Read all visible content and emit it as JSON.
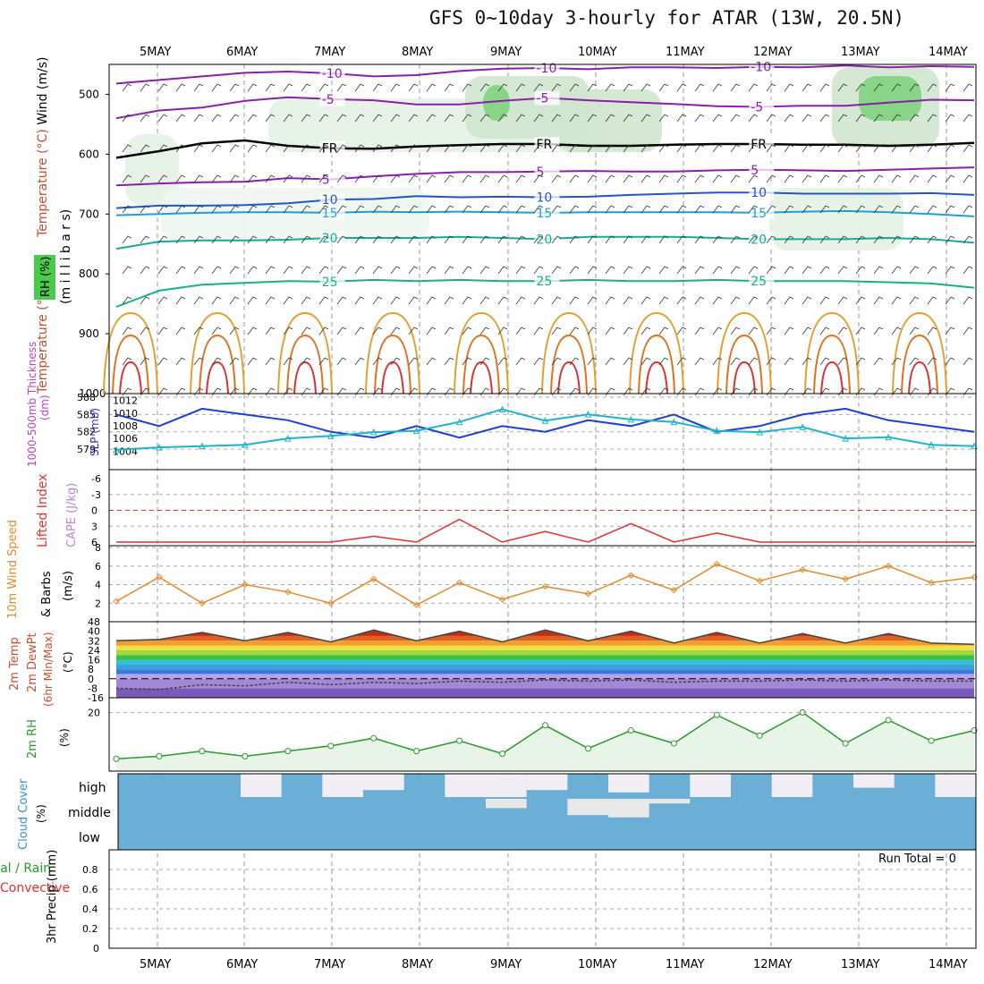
{
  "title": "GFS 0~10day 3-hourly for ATAR (13W, 20.5N)",
  "dates": [
    "5MAY",
    "6MAY",
    "7MAY",
    "8MAY",
    "9MAY",
    "10MAY",
    "11MAY",
    "12MAY",
    "13MAY",
    "14MAY"
  ],
  "chart_data": [
    {
      "panel": "upper-air",
      "type": "contour",
      "ylabel": "(m i l l i b a r s)",
      "legend_labels": [
        "Wind (m/s)",
        "Temperature (°C)",
        "RH (%)"
      ],
      "ylim": [
        1000,
        450
      ],
      "y_ticks": [
        500,
        600,
        700,
        800,
        900,
        1000
      ],
      "freezing_level_label": "FR",
      "isotherms": [
        {
          "temp": -10,
          "label": "-10",
          "color": "#8b1fa9",
          "values": [
            482,
            476,
            470,
            464,
            462,
            465,
            470,
            468,
            461,
            457,
            456,
            458,
            455,
            455,
            456,
            454,
            455,
            452,
            455,
            453,
            454
          ]
        },
        {
          "temp": -5,
          "label": "-5",
          "color": "#8b1fa9",
          "values": [
            540,
            527,
            522,
            511,
            505,
            508,
            510,
            517,
            517,
            511,
            506,
            510,
            513,
            516,
            520,
            521,
            519,
            519,
            514,
            509,
            510
          ]
        },
        {
          "temp": 0,
          "label": "FR",
          "color": "#000000",
          "values": [
            606,
            595,
            582,
            577,
            586,
            590,
            591,
            587,
            585,
            583,
            583,
            586,
            586,
            584,
            583,
            583,
            584,
            584,
            586,
            584,
            581
          ]
        },
        {
          "temp": 5,
          "label": "5",
          "color": "#8b1fa9",
          "values": [
            652,
            649,
            647,
            646,
            640,
            642,
            637,
            633,
            630,
            630,
            629,
            628,
            629,
            629,
            627,
            626,
            627,
            628,
            626,
            624,
            622
          ]
        },
        {
          "temp": 10,
          "label": "10",
          "color": "#2255cc",
          "values": [
            690,
            686,
            686,
            685,
            682,
            676,
            675,
            670,
            672,
            671,
            672,
            671,
            668,
            666,
            664,
            664,
            666,
            666,
            666,
            665,
            668
          ]
        },
        {
          "temp": 15,
          "label": "15",
          "color": "#1f9fd6",
          "values": [
            702,
            700,
            698,
            697,
            697,
            698,
            696,
            697,
            696,
            697,
            698,
            697,
            697,
            697,
            697,
            698,
            696,
            695,
            697,
            700,
            704
          ]
        },
        {
          "temp": 20,
          "label": "20",
          "color": "#1aaa99",
          "values": [
            758,
            746,
            744,
            744,
            743,
            740,
            740,
            740,
            738,
            740,
            742,
            738,
            738,
            738,
            740,
            742,
            742,
            742,
            740,
            742,
            748
          ]
        },
        {
          "temp": 25,
          "label": "25",
          "color": "#19b088",
          "values": [
            855,
            828,
            818,
            815,
            812,
            813,
            810,
            812,
            810,
            812,
            812,
            810,
            812,
            812,
            810,
            812,
            812,
            812,
            814,
            816,
            823
          ]
        }
      ]
    },
    {
      "panel": "thickness-slp",
      "type": "line",
      "series": [
        {
          "name": "1000-500mb Thickness (dm)",
          "color": "#1f3fcf",
          "values": [
            585,
            583,
            586,
            585,
            584,
            582,
            581,
            583,
            581,
            583,
            582,
            584,
            583,
            585,
            582,
            583,
            585,
            586,
            584,
            583,
            582
          ]
        },
        {
          "name": "SLP (mb)",
          "color": "#1fb3c9",
          "values": [
            1004.2,
            1004.6,
            1004.8,
            1005.0,
            1006.0,
            1006.4,
            1007.0,
            1007.2,
            1008.6,
            1010.6,
            1008.8,
            1009.8,
            1009.0,
            1008.6,
            1007.2,
            1007.0,
            1007.8,
            1006.0,
            1006.2,
            1005.0,
            1004.8
          ]
        }
      ],
      "thickness_ticks": [
        579,
        582,
        585,
        588
      ],
      "slp_ticks": [
        1004,
        1006,
        1008,
        1010,
        1012
      ]
    },
    {
      "panel": "stability",
      "type": "line",
      "series": [
        {
          "name": "Lifted Index",
          "color": "#e03030",
          "values": [
            6,
            6,
            6,
            6,
            6,
            6,
            4.9,
            6,
            1.7,
            6,
            4.0,
            6,
            2.5,
            6,
            4.3,
            6,
            6,
            6,
            6,
            6,
            6
          ]
        },
        {
          "name": "CAPE (J/kg)",
          "color": "#c080e0",
          "values": []
        }
      ],
      "ylim": [
        6,
        -6
      ],
      "y_ticks": [
        6,
        3,
        0,
        -3,
        -6
      ]
    },
    {
      "panel": "wind",
      "type": "line",
      "series": [
        {
          "name": "10m Wind Speed",
          "color": "#e08a2c",
          "values": [
            2.2,
            4.8,
            2.0,
            4.0,
            3.2,
            2.0,
            4.6,
            1.8,
            4.2,
            2.4,
            3.8,
            3.0,
            5.0,
            3.4,
            6.2,
            4.4,
            5.6,
            4.6,
            6.0,
            4.2,
            4.8
          ]
        }
      ],
      "ylabel": "(m/s)",
      "ylim": [
        0,
        8
      ],
      "y_ticks": [
        2,
        4,
        6,
        8
      ]
    },
    {
      "panel": "temperature",
      "type": "area",
      "series": [
        {
          "name": "2m Temp",
          "color": "#444444",
          "values": [
            32,
            33,
            39,
            32,
            39,
            31,
            41,
            32,
            40,
            31,
            41,
            32,
            40,
            30,
            39,
            30,
            38,
            30,
            38,
            30,
            29
          ]
        },
        {
          "name": "2m DewPt",
          "color": "#444444",
          "values": [
            -8,
            -9,
            -5,
            -6,
            -3,
            -5,
            -3,
            -4,
            -2,
            -3,
            -1,
            -2,
            -1,
            -3,
            -2,
            -2,
            -1,
            -2,
            -1,
            -2,
            -2
          ]
        }
      ],
      "ylabel": "(°C)",
      "ylim": [
        -16,
        48
      ],
      "y_ticks": [
        48,
        40,
        32,
        24,
        16,
        8,
        0,
        -8,
        -16
      ]
    },
    {
      "panel": "rh",
      "type": "area",
      "series": [
        {
          "name": "2m RH",
          "color": "#2a9a2a",
          "values": [
            2,
            3,
            5,
            3,
            5,
            7,
            10,
            5,
            9,
            4,
            15,
            6,
            13,
            8,
            19,
            11,
            20,
            8,
            17,
            9,
            13
          ]
        }
      ],
      "ylabel": "(%)",
      "ylim": [
        0,
        25
      ],
      "y_ticks": [
        20
      ]
    },
    {
      "panel": "cloud",
      "type": "heatmap",
      "rows": [
        "high",
        "middle",
        "low"
      ],
      "ylabel": "(%)",
      "high_cover": [
        1,
        1,
        1,
        0,
        1,
        0,
        0.3,
        1,
        0,
        0,
        0.3,
        1,
        0.2,
        1,
        0,
        1,
        0,
        1,
        0.4,
        1,
        0
      ],
      "middle_cover": [
        1,
        1,
        1,
        1,
        1,
        1,
        1,
        1,
        1,
        0.6,
        1,
        0.3,
        0.2,
        0.8,
        1,
        1,
        1,
        1,
        1,
        1,
        1
      ]
    },
    {
      "panel": "precip",
      "type": "bar",
      "series": [
        {
          "name": "Total / Rain",
          "color": "#2a9a2a",
          "values": []
        },
        {
          "name": "Convective",
          "color": "#e03030",
          "values": []
        }
      ],
      "ylabel": "3hr Precip (mm)",
      "ylim": [
        0,
        1
      ],
      "y_ticks": [
        0,
        0.2,
        0.4,
        0.6,
        0.8
      ],
      "run_total_label": "Run Total = 0"
    }
  ]
}
